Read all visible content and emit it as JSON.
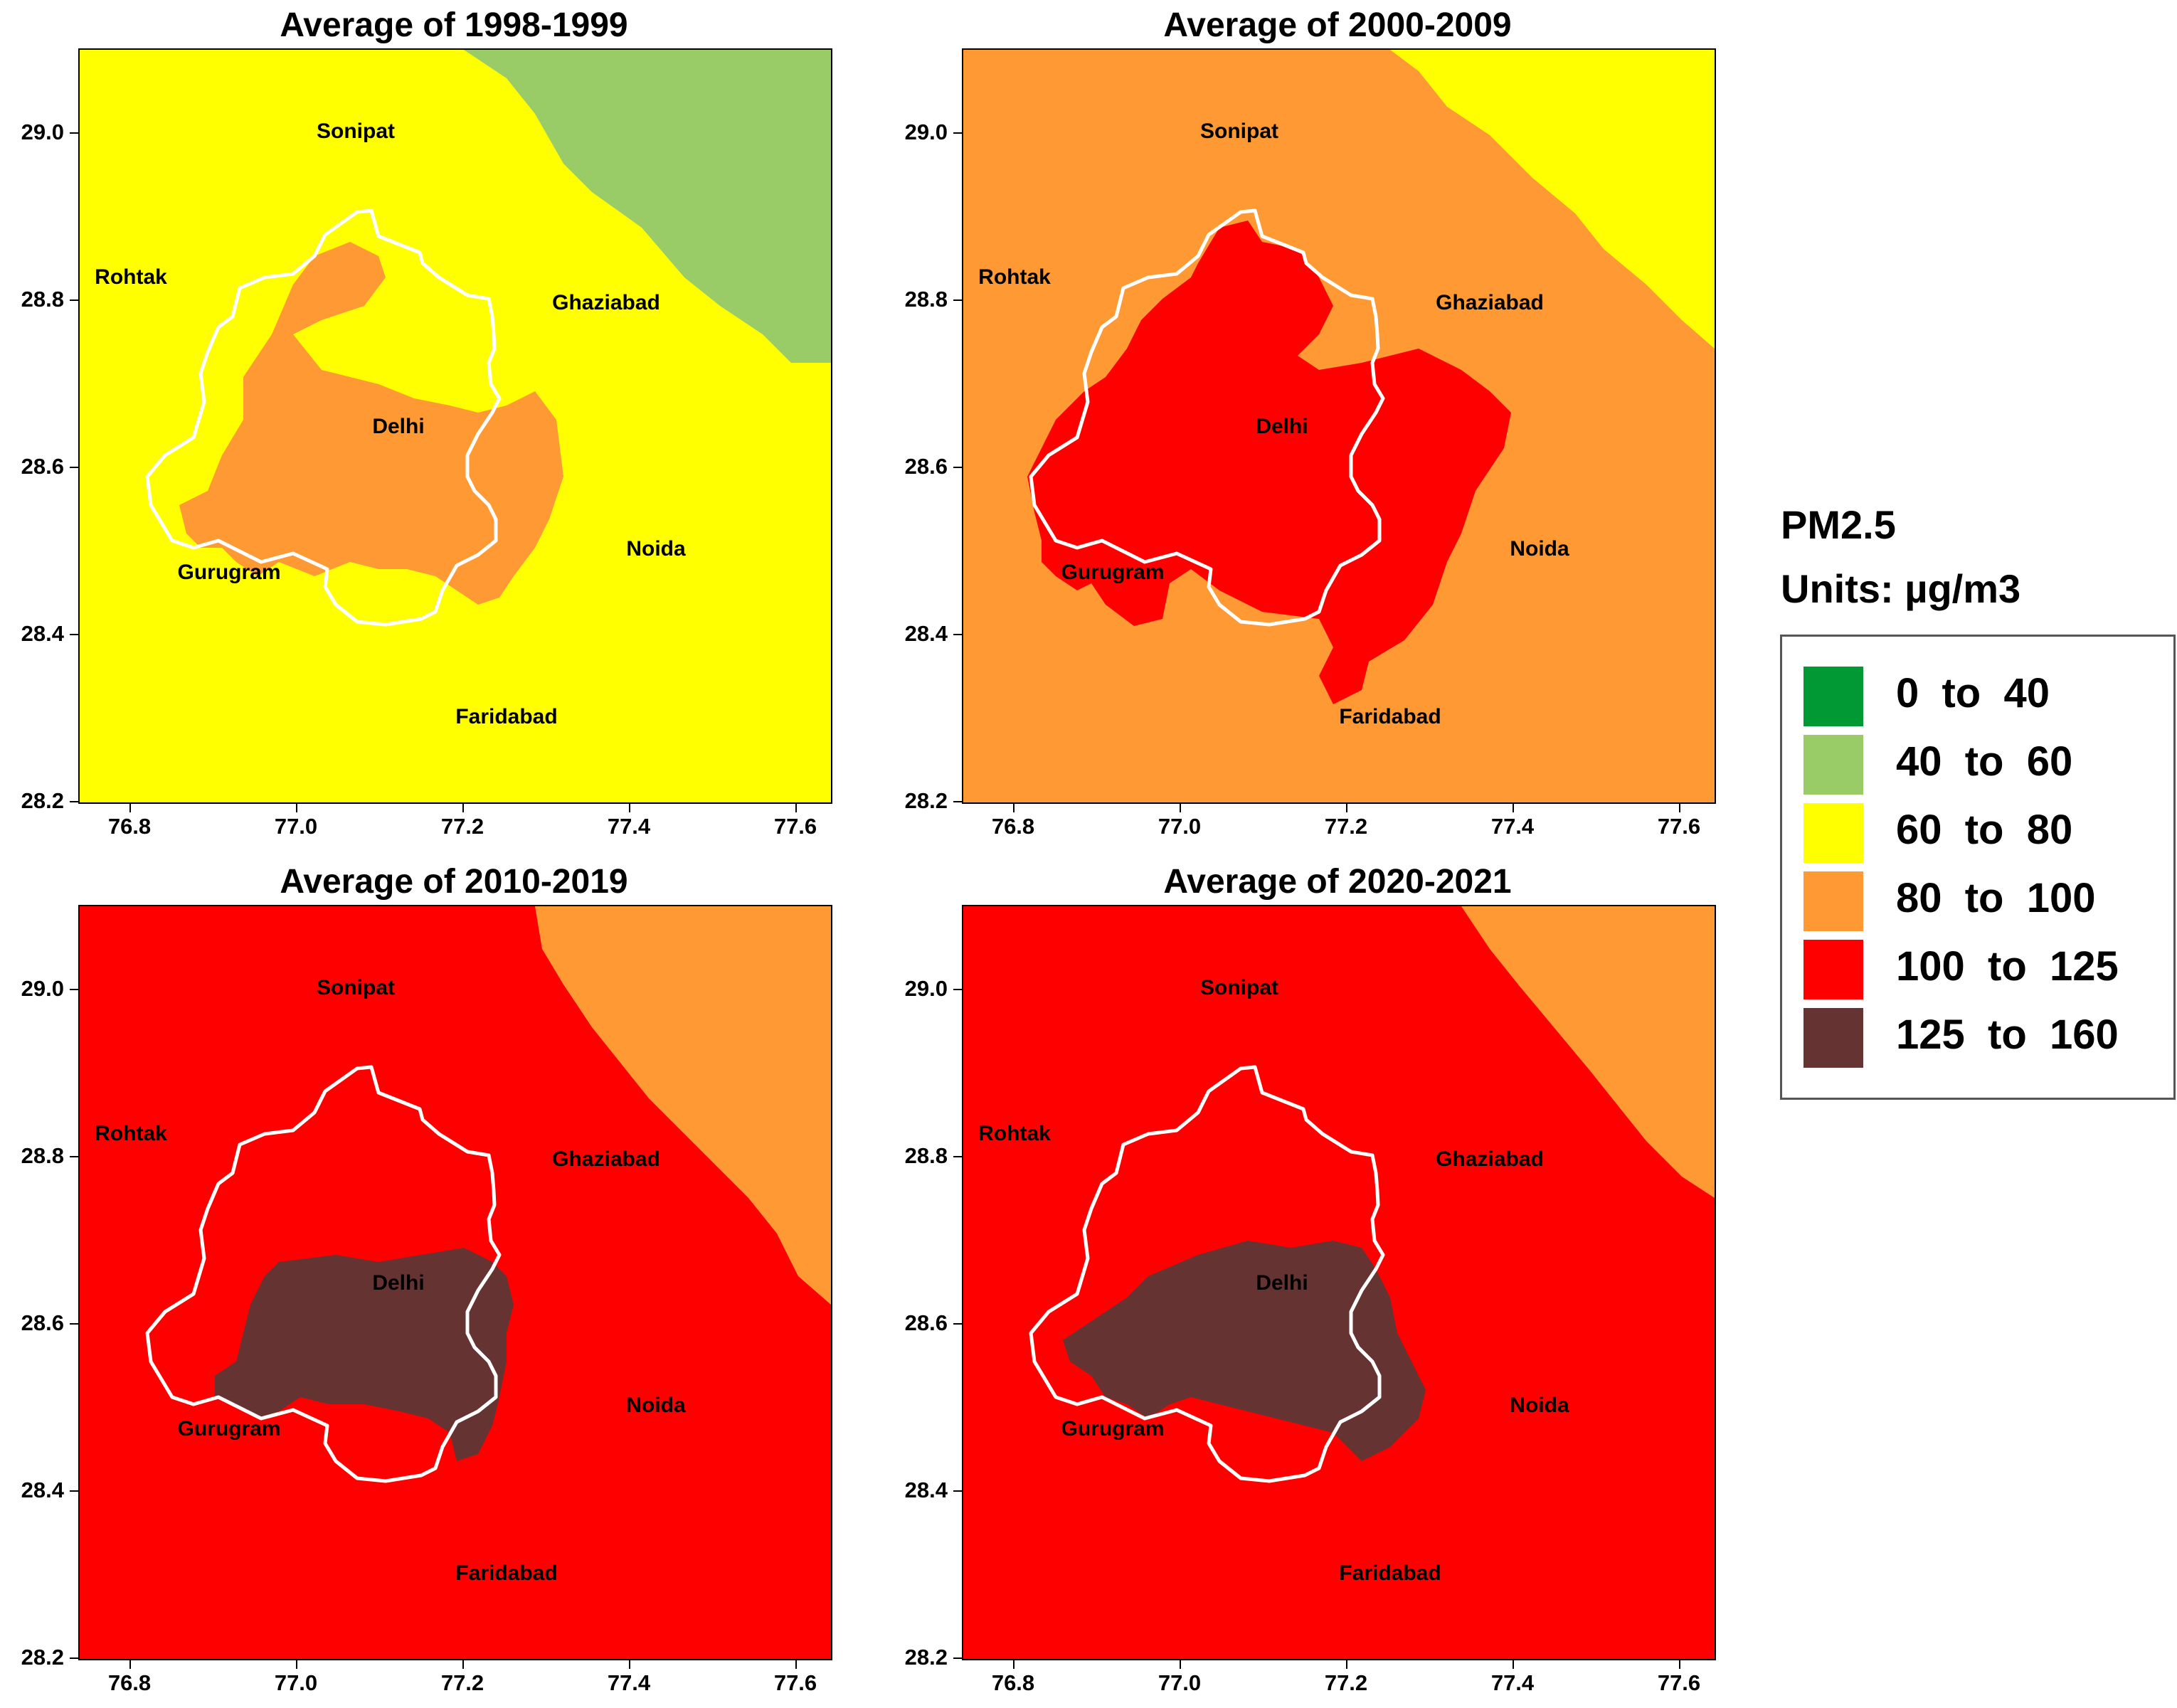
{
  "legend": {
    "title": "PM2.5",
    "units": "Units:  µg/m3",
    "classes": [
      {
        "label": "0  to  40",
        "color": "#009933"
      },
      {
        "label": "40  to  60",
        "color": "#99cc66"
      },
      {
        "label": "60  to  80",
        "color": "#ffff00"
      },
      {
        "label": "80  to  100",
        "color": "#ff9933"
      },
      {
        "label": "100  to  125",
        "color": "#ff0000"
      },
      {
        "label": "125  to  160",
        "color": "#663333"
      }
    ]
  },
  "axes": {
    "x_ticks": [
      "76.8",
      "77.0",
      "77.2",
      "77.4",
      "77.6"
    ],
    "y_ticks": [
      "29.0",
      "28.8",
      "28.6",
      "28.4",
      "28.2"
    ]
  },
  "cities": {
    "sonipat": "Sonipat",
    "rohtak": "Rohtak",
    "ghaziabad": "Ghaziabad",
    "delhi": "Delhi",
    "noida": "Noida",
    "gurugram": "Gurugram",
    "faridabad": "Faridabad"
  },
  "panels": [
    {
      "title": "Average of 1998-1999",
      "base": "#ffff00",
      "secondary": "#99cc66",
      "inner": "#ff9933"
    },
    {
      "title": "Average of 2000-2009",
      "base": "#ff9933",
      "secondary": "#ffff00",
      "inner": "#ff0000"
    },
    {
      "title": "Average of 2010-2019",
      "base": "#ff0000",
      "secondary": "#ff9933",
      "inner": "#663333"
    },
    {
      "title": "Average of 2020-2021",
      "base": "#ff0000",
      "secondary": "#ff9933",
      "inner": "#663333"
    }
  ]
}
